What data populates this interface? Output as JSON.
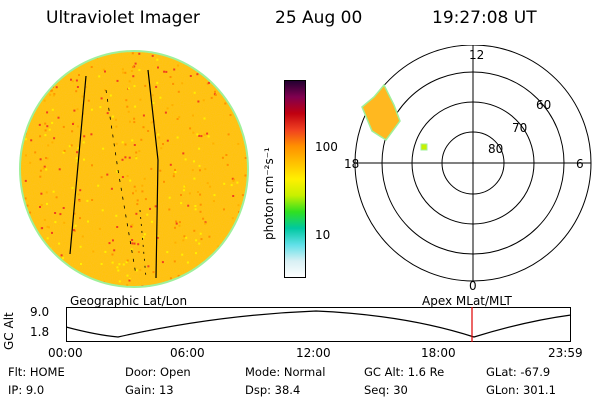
{
  "header": {
    "instrument": "Ultraviolet Imager",
    "date": "25 Aug 00",
    "time": "19:27:08 UT"
  },
  "colorbar": {
    "unit_label": "photon cm⁻²s⁻¹",
    "ticks": [
      "100",
      "10"
    ],
    "colors": [
      "#ffffff",
      "#d8f0f4",
      "#60e0e8",
      "#00c8a0",
      "#30e020",
      "#c8f000",
      "#fff000",
      "#ffc000",
      "#ff9000",
      "#f04020",
      "#c00010",
      "#800050",
      "#200030"
    ]
  },
  "polar": {
    "labels": {
      "top": "12",
      "bottom": "0",
      "left": "18",
      "right": "6"
    },
    "lat_labels": [
      "60",
      "70",
      "80"
    ]
  },
  "altitude_plot": {
    "left_title": "Geographic Lat/Lon",
    "right_title": "Apex MLat/MLT",
    "ylabel": "GC Alt",
    "yticks": [
      "9.0",
      "1.8"
    ],
    "xticks": [
      "00:00",
      "06:00",
      "12:00",
      "18:00",
      "23:59"
    ]
  },
  "footer": {
    "row1": {
      "flt": "Flt: HOME",
      "door": "Door: Open",
      "mode": "Mode: Normal",
      "gcalt": "GC Alt: 1.6 Re",
      "glat": "GLat: -67.9"
    },
    "row2": {
      "ip": "IP:  9.0",
      "gain": "Gain: 13",
      "dsp": "Dsp:   38.4",
      "seq": "Seq: 30",
      "glon": "GLon: 301.1"
    }
  }
}
